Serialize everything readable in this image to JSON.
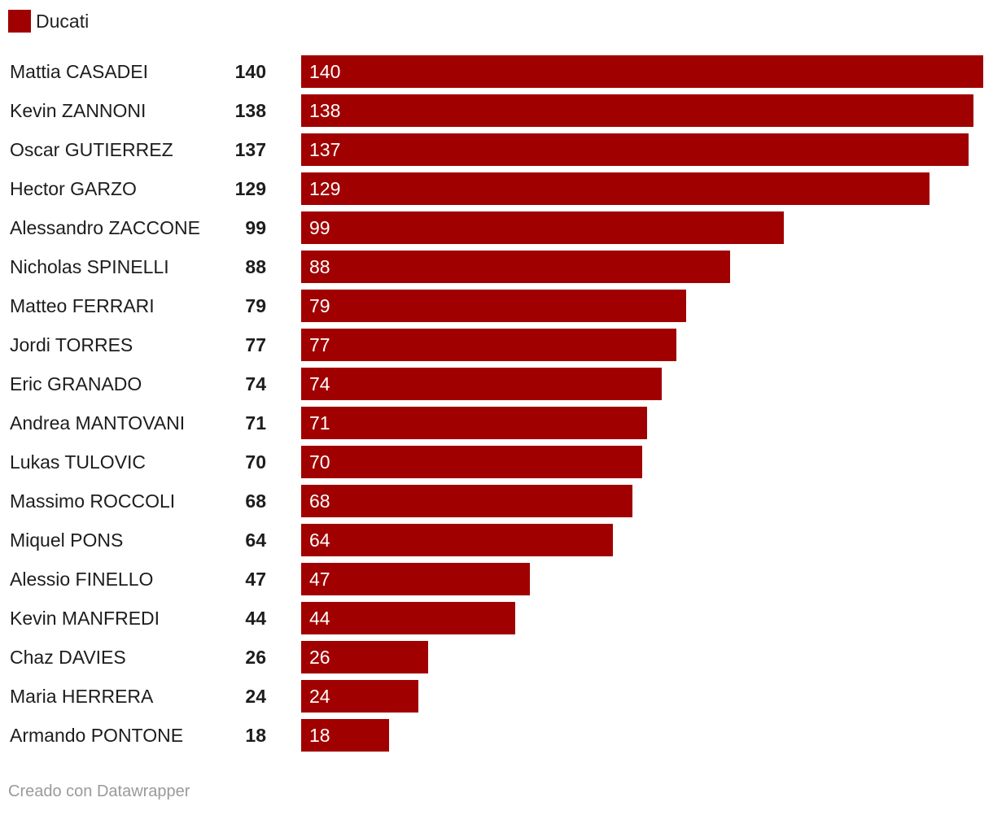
{
  "legend": {
    "label": "Ducati",
    "color": "#a00000"
  },
  "footer": {
    "credit": "Creado con Datawrapper"
  },
  "chart_data": {
    "type": "bar",
    "orientation": "horizontal",
    "categories": [
      "Mattia CASADEI",
      "Kevin ZANNONI",
      "Oscar GUTIERREZ",
      "Hector GARZO",
      "Alessandro ZACCONE",
      "Nicholas SPINELLI",
      "Matteo FERRARI",
      "Jordi TORRES",
      "Eric GRANADO",
      "Andrea MANTOVANI",
      "Lukas TULOVIC",
      "Massimo ROCCOLI",
      "Miquel PONS",
      "Alessio FINELLO",
      "Kevin MANFREDI",
      "Chaz DAVIES",
      "Maria HERRERA",
      "Armando PONTONE"
    ],
    "series": [
      {
        "name": "Ducati",
        "color": "#a00000",
        "values": [
          140,
          138,
          137,
          129,
          99,
          88,
          79,
          77,
          74,
          71,
          70,
          68,
          64,
          47,
          44,
          26,
          24,
          18
        ]
      }
    ],
    "xlim": [
      0,
      140
    ],
    "grid": false,
    "legend_position": "top-left"
  }
}
